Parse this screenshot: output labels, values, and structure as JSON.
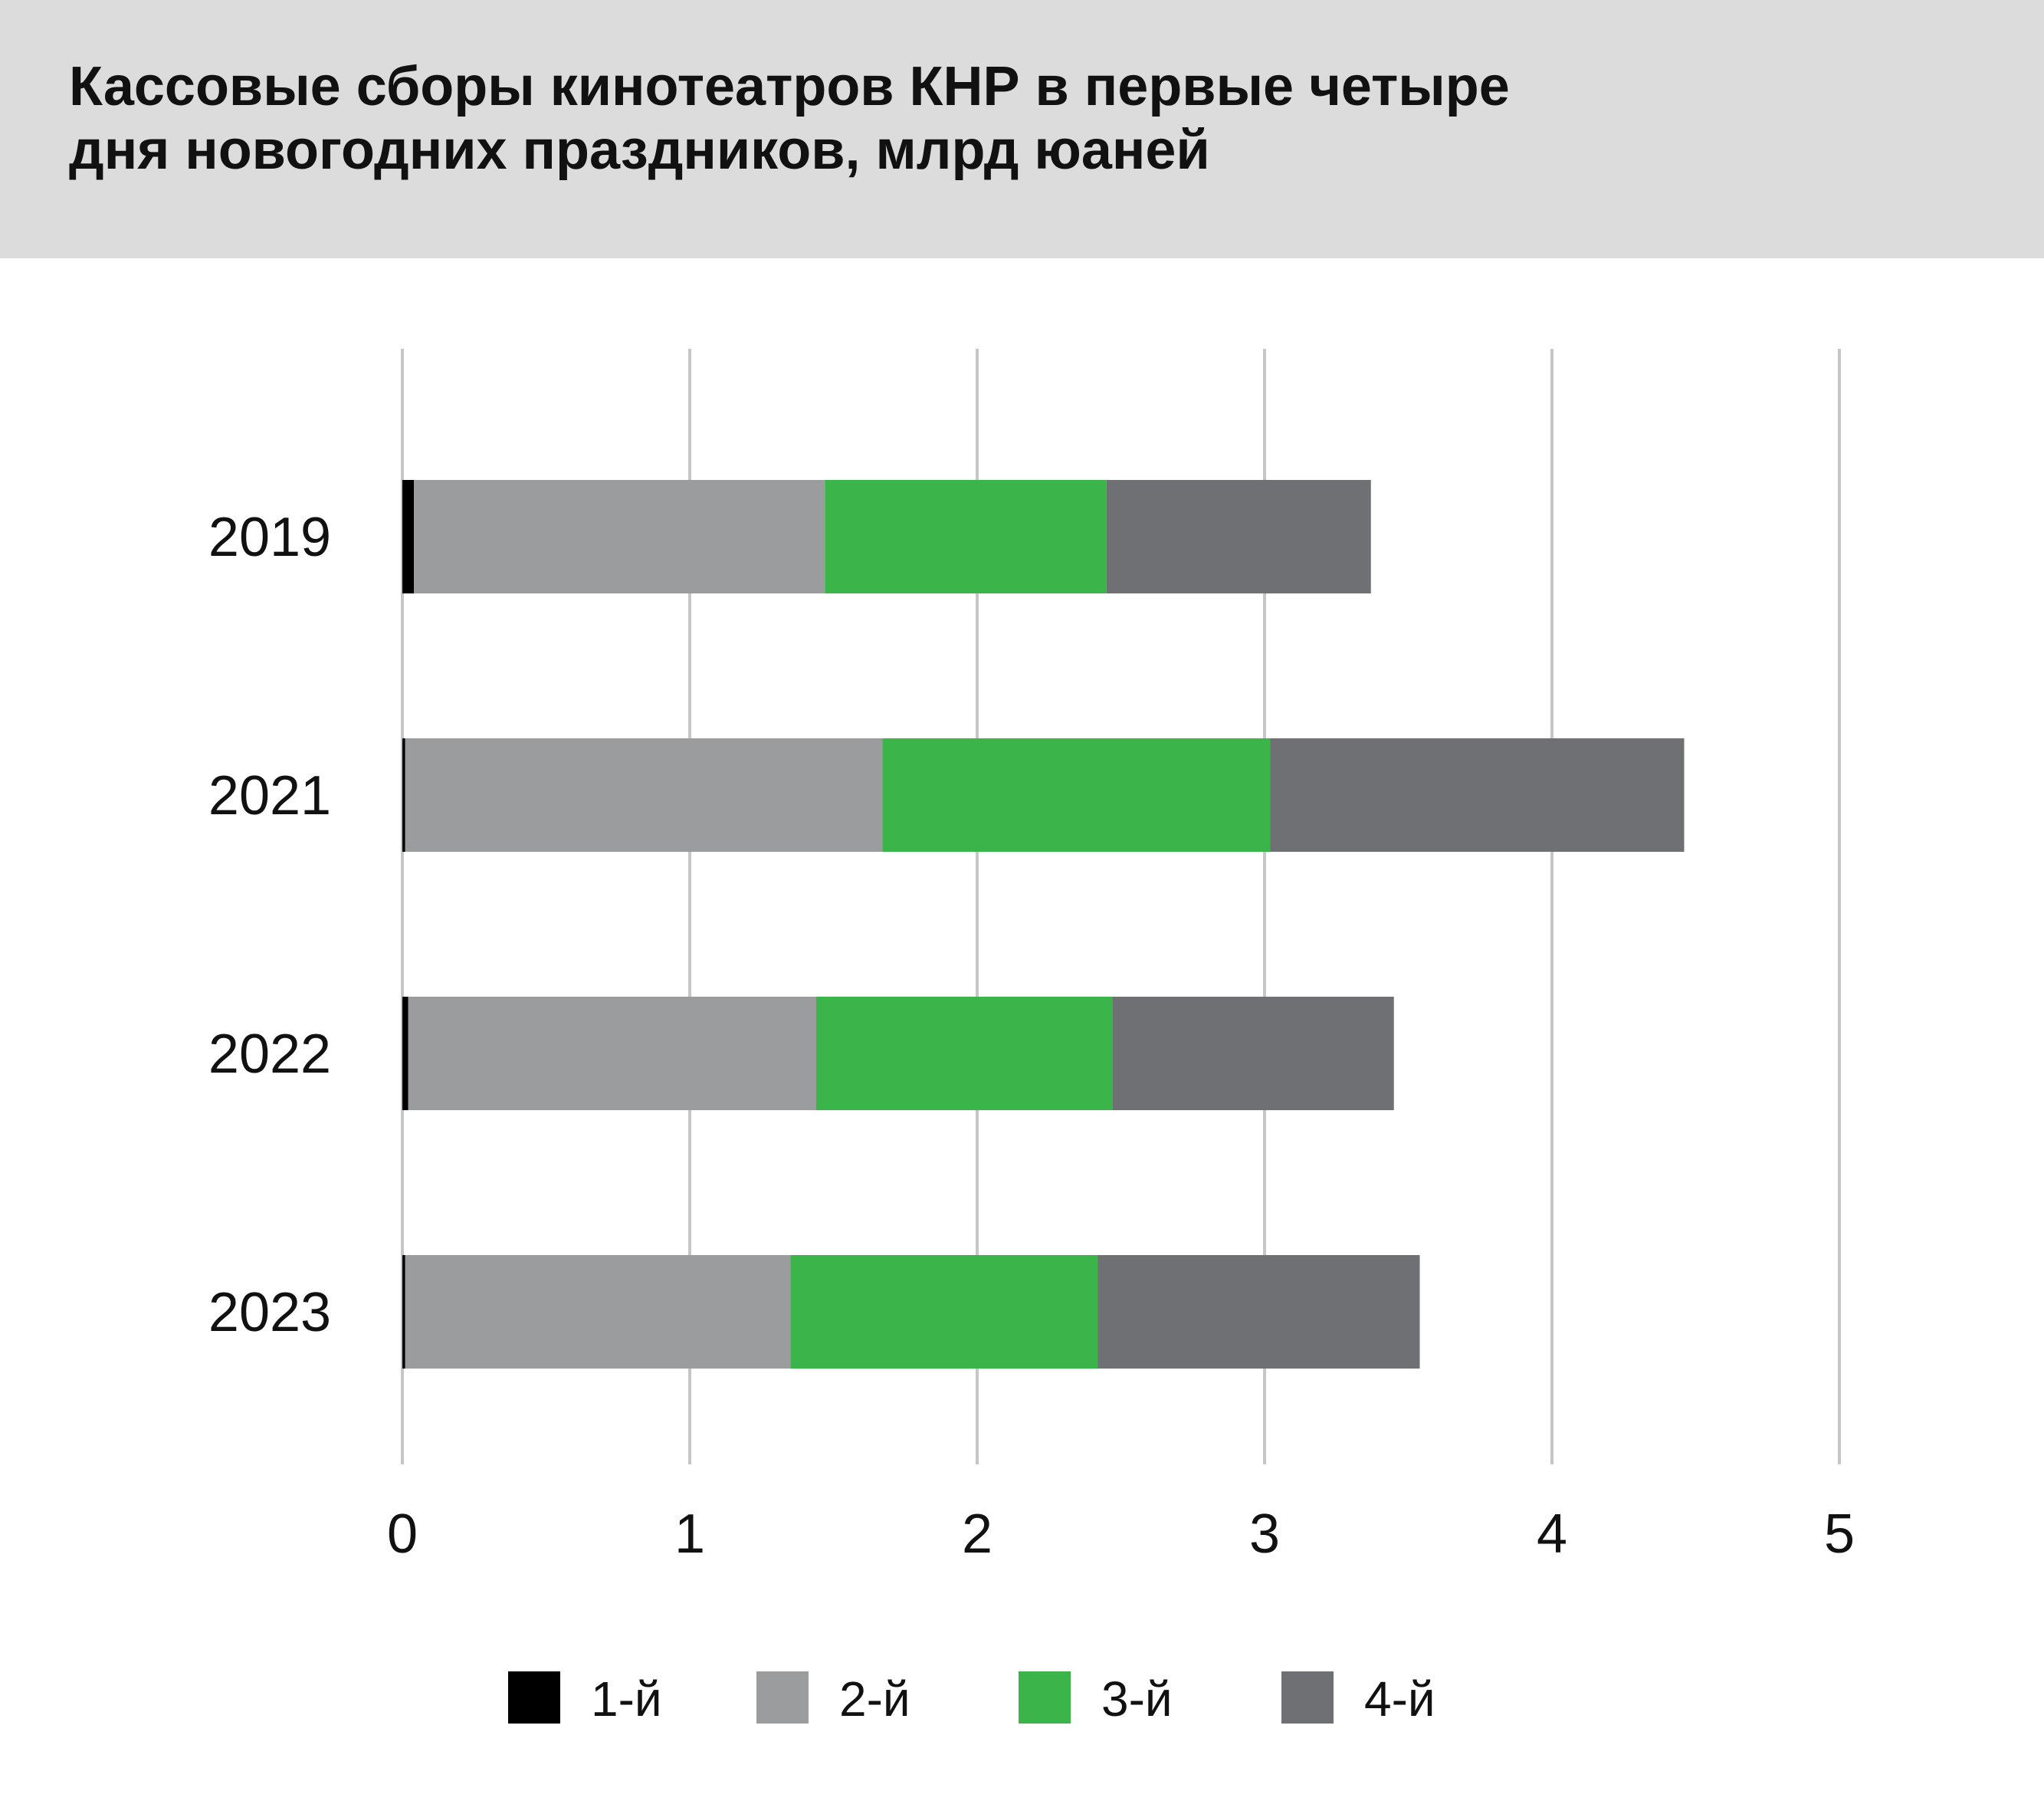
{
  "title": "Кассовые сборы кинотеатров КНР в первые четыре\nдня новогодних праздников, млрд юаней",
  "colors": {
    "header_bg": "#dcdcdd",
    "gridline": "#c6c6c6",
    "day1": "#000000",
    "day2": "#9b9c9e",
    "day3": "#3bb54a",
    "day4": "#6f7073"
  },
  "chart_data": {
    "type": "bar",
    "orientation": "horizontal",
    "stacked": true,
    "title": "Кассовые сборы кинотеатров КНР в первые четыре дня новогодних праздников, млрд юаней",
    "categories": [
      "2019",
      "2021",
      "2022",
      "2023"
    ],
    "series": [
      {
        "name": "1-й",
        "color": "#000000",
        "values": [
          0.04,
          0.01,
          0.02,
          0.01
        ]
      },
      {
        "name": "2-й",
        "color": "#9b9c9e",
        "values": [
          1.43,
          1.66,
          1.42,
          1.34
        ]
      },
      {
        "name": "3-й",
        "color": "#3bb54a",
        "values": [
          0.98,
          1.35,
          1.03,
          1.07
        ]
      },
      {
        "name": "4-й",
        "color": "#6f7073",
        "values": [
          0.92,
          1.44,
          0.98,
          1.12
        ]
      }
    ],
    "xlim": [
      0,
      5
    ],
    "xticks": [
      "0",
      "1",
      "2",
      "3",
      "4",
      "5"
    ],
    "grid": true,
    "legend_position": "bottom"
  }
}
